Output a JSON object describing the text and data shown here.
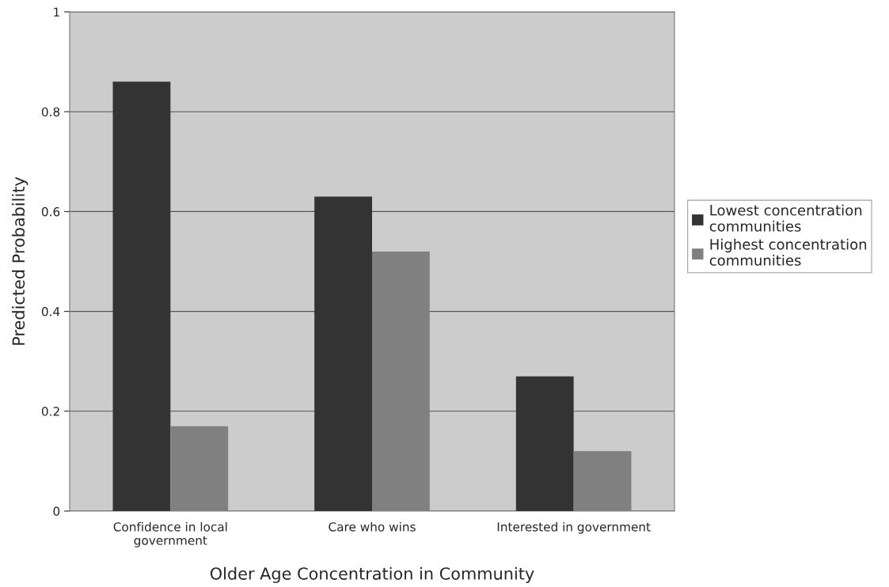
{
  "chart_data": {
    "type": "bar",
    "xlabel": "Older Age Concentration in Community",
    "ylabel": "Predicted Probability",
    "categories": [
      "Confidence in local\ngovernment",
      "Care who wins",
      "Interested in government"
    ],
    "series": [
      {
        "name": "Lowest concentration\ncommunities",
        "color": "#333333",
        "values": [
          0.86,
          0.63,
          0.27
        ]
      },
      {
        "name": "Highest concentration\ncommunities",
        "color": "#808080",
        "values": [
          0.17,
          0.52,
          0.12
        ]
      }
    ],
    "ylim": [
      0,
      1
    ],
    "yticks": [
      0,
      0.2,
      0.4,
      0.6,
      0.8,
      1
    ],
    "grid": "y",
    "legend": "right"
  }
}
